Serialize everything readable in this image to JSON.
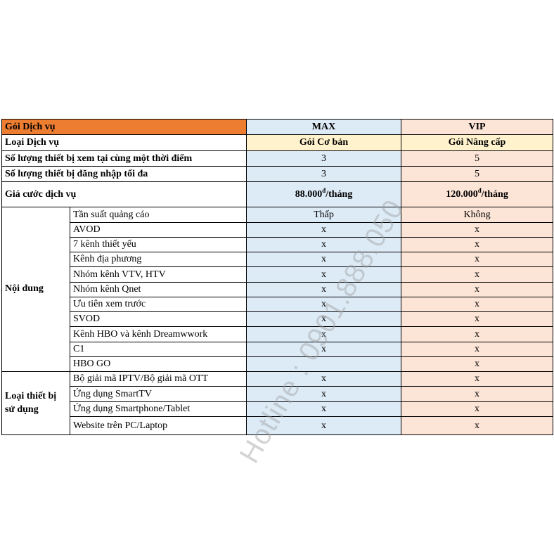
{
  "header": {
    "label": "Gói Dịch vụ",
    "max": "MAX",
    "vip": "VIP"
  },
  "type_row": {
    "label": "Loại Dịch vụ",
    "max": "Gói Cơ bản",
    "vip": "Gói Nâng cấp"
  },
  "concurrent_row": {
    "label": "Số lượng thiết bị xem tại cùng một thời điểm",
    "max": "3",
    "vip": "5"
  },
  "login_row": {
    "label": "Số lượng thiết bị đăng nhập tối đa",
    "max": "3",
    "vip": "5"
  },
  "price_row": {
    "label": "Giá cước dịch vụ",
    "max_amount": "88.000",
    "vip_amount": "120.000",
    "currency": "đ",
    "unit": "/tháng"
  },
  "content_group": {
    "label": "Nội dung",
    "rows": [
      {
        "label": "Tần suất quảng cáo",
        "max": "Thấp",
        "vip": "Không"
      },
      {
        "label": "AVOD",
        "max": "x",
        "vip": "x"
      },
      {
        "label": "7 kênh thiết yếu",
        "max": "x",
        "vip": "x"
      },
      {
        "label": "Kênh địa phương",
        "max": "x",
        "vip": "x"
      },
      {
        "label": "Nhóm kênh VTV, HTV",
        "max": "x",
        "vip": "x"
      },
      {
        "label": "Nhóm kênh Qnet",
        "max": "x",
        "vip": "x"
      },
      {
        "label": "Ưu tiên xem trước",
        "max": "x",
        "vip": "x"
      },
      {
        "label": "SVOD",
        "max": "x",
        "vip": "x"
      },
      {
        "label": "Kênh HBO và kênh Dreamwwork",
        "max": "x",
        "vip": "x"
      },
      {
        "label": "C1",
        "max": "x",
        "vip": "x"
      },
      {
        "label": "HBO GO",
        "max": "",
        "vip": "x"
      }
    ]
  },
  "device_group": {
    "label_line1": "Loại thiết bị",
    "label_line2": "sử dụng",
    "rows": [
      {
        "label": "Bộ giải mã IPTV/Bộ giải mã OTT",
        "max": "x",
        "vip": "x"
      },
      {
        "label": "Ứng dụng SmartTV",
        "max": "x",
        "vip": "x"
      },
      {
        "label": "Ứng dụng Smartphone/Tablet",
        "max": "x",
        "vip": "x"
      },
      {
        "label": "Website trên PC/Laptop",
        "max": "x",
        "vip": "x"
      }
    ]
  },
  "watermark": "Hotline : 0901.888.050",
  "colors": {
    "header_orange": "#ED7D31",
    "max_blue": "#DDEBF7",
    "vip_peach": "#FCE4D6",
    "type_yellow": "#FFF2CC"
  }
}
